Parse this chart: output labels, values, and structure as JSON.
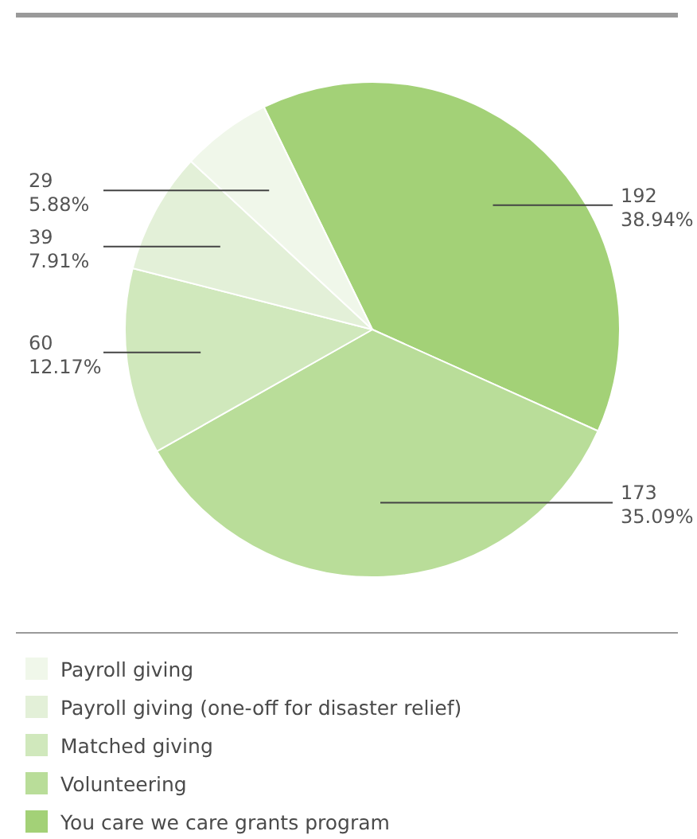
{
  "chart_data": {
    "type": "pie",
    "categories": [
      "You care we care grants program",
      "Volunteering",
      "Matched giving",
      "Payroll giving (one-off for disaster relief)",
      "Payroll giving"
    ],
    "values": [
      192,
      173,
      60,
      39,
      29
    ],
    "colors": [
      "#a3d177",
      "#b9dd99",
      "#d0e8bc",
      "#e3f0d8",
      "#f0f7ea"
    ],
    "value_labels": [
      "192\n38.94%",
      "173\n35.09%",
      "60\n12.17%",
      "39\n7.91%",
      "29\n5.88%"
    ],
    "legend": "bottom"
  }
}
